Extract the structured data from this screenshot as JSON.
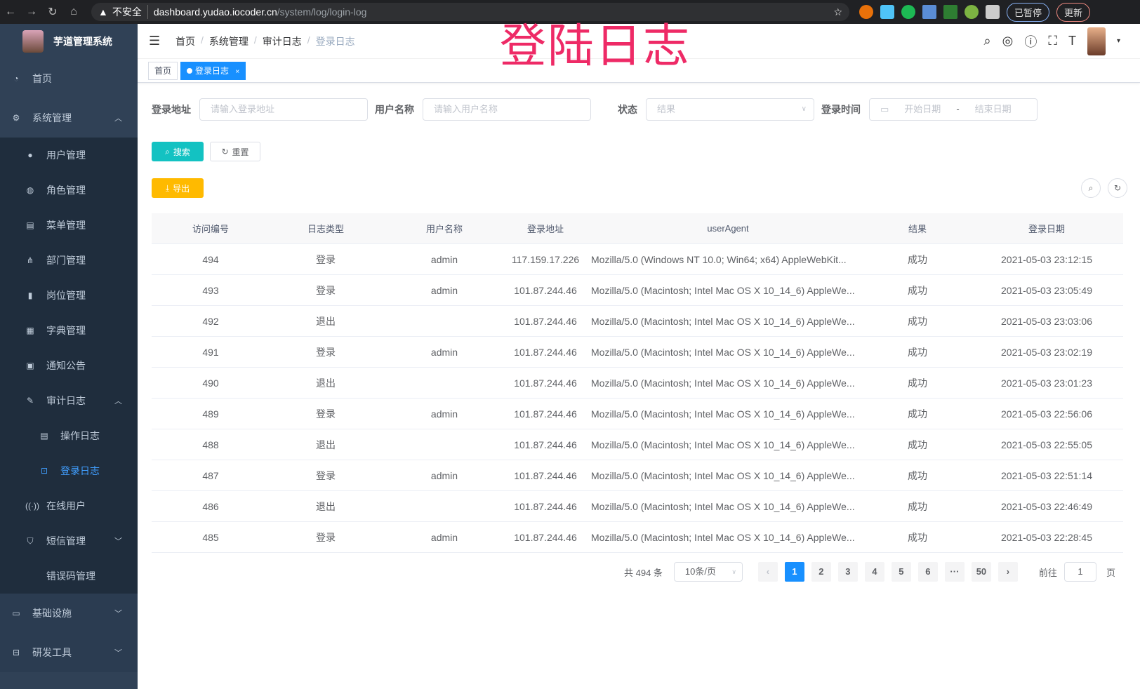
{
  "browser": {
    "url_insecure": "不安全",
    "url_host": "dashboard.yudao.iocoder.cn",
    "url_path": "/system/log/login-log",
    "paused": "已暂停",
    "update": "更新"
  },
  "watermark": "登陆日志",
  "sidebar": {
    "title": "芋道管理系统",
    "items": [
      {
        "label": "首页",
        "icon": "dashboard-icon",
        "level": 0
      },
      {
        "label": "系统管理",
        "icon": "gear-icon",
        "level": 0,
        "chevron": "up"
      },
      {
        "label": "用户管理",
        "icon": "user-icon",
        "level": 1
      },
      {
        "label": "角色管理",
        "icon": "peoples-icon",
        "level": 1
      },
      {
        "label": "菜单管理",
        "icon": "tree-table-icon",
        "level": 1
      },
      {
        "label": "部门管理",
        "icon": "tree-icon",
        "level": 1
      },
      {
        "label": "岗位管理",
        "icon": "post-icon",
        "level": 1
      },
      {
        "label": "字典管理",
        "icon": "dict-icon",
        "level": 1
      },
      {
        "label": "通知公告",
        "icon": "message-icon",
        "level": 1
      },
      {
        "label": "审计日志",
        "icon": "log-icon",
        "level": 1,
        "chevron": "up"
      },
      {
        "label": "操作日志",
        "icon": "form-icon",
        "level": 2
      },
      {
        "label": "登录日志",
        "icon": "logininfor-icon",
        "level": 2,
        "active": true
      },
      {
        "label": "在线用户",
        "icon": "online-icon",
        "level": 1
      },
      {
        "label": "短信管理",
        "icon": "validcode-icon",
        "level": 1,
        "chevron": "down"
      },
      {
        "label": "错误码管理",
        "icon": "code-icon",
        "level": 1
      },
      {
        "label": "基础设施",
        "icon": "monitor-icon",
        "level": 0,
        "chevron": "down"
      },
      {
        "label": "研发工具",
        "icon": "tool-icon",
        "level": 0,
        "chevron": "down"
      }
    ]
  },
  "breadcrumb": [
    "首页",
    "系统管理",
    "审计日志",
    "登录日志"
  ],
  "tags": [
    {
      "label": "首页"
    },
    {
      "label": "登录日志",
      "active": true
    }
  ],
  "filters": {
    "address_label": "登录地址",
    "address_placeholder": "请输入登录地址",
    "user_label": "用户名称",
    "user_placeholder": "请输入用户名称",
    "status_label": "状态",
    "status_placeholder": "结果",
    "time_label": "登录时间",
    "start_placeholder": "开始日期",
    "end_placeholder": "结束日期",
    "range_sep": "-"
  },
  "buttons": {
    "search": "搜索",
    "reset": "重置",
    "export": "导出"
  },
  "table": {
    "headers": [
      "访问编号",
      "日志类型",
      "用户名称",
      "登录地址",
      "userAgent",
      "结果",
      "登录日期"
    ],
    "rows": [
      [
        "494",
        "登录",
        "admin",
        "117.159.17.226",
        "Mozilla/5.0 (Windows NT 10.0; Win64; x64) AppleWebKit...",
        "成功",
        "2021-05-03 23:12:15"
      ],
      [
        "493",
        "登录",
        "admin",
        "101.87.244.46",
        "Mozilla/5.0 (Macintosh; Intel Mac OS X 10_14_6) AppleWe...",
        "成功",
        "2021-05-03 23:05:49"
      ],
      [
        "492",
        "退出",
        "",
        "101.87.244.46",
        "Mozilla/5.0 (Macintosh; Intel Mac OS X 10_14_6) AppleWe...",
        "成功",
        "2021-05-03 23:03:06"
      ],
      [
        "491",
        "登录",
        "admin",
        "101.87.244.46",
        "Mozilla/5.0 (Macintosh; Intel Mac OS X 10_14_6) AppleWe...",
        "成功",
        "2021-05-03 23:02:19"
      ],
      [
        "490",
        "退出",
        "",
        "101.87.244.46",
        "Mozilla/5.0 (Macintosh; Intel Mac OS X 10_14_6) AppleWe...",
        "成功",
        "2021-05-03 23:01:23"
      ],
      [
        "489",
        "登录",
        "admin",
        "101.87.244.46",
        "Mozilla/5.0 (Macintosh; Intel Mac OS X 10_14_6) AppleWe...",
        "成功",
        "2021-05-03 22:56:06"
      ],
      [
        "488",
        "退出",
        "",
        "101.87.244.46",
        "Mozilla/5.0 (Macintosh; Intel Mac OS X 10_14_6) AppleWe...",
        "成功",
        "2021-05-03 22:55:05"
      ],
      [
        "487",
        "登录",
        "admin",
        "101.87.244.46",
        "Mozilla/5.0 (Macintosh; Intel Mac OS X 10_14_6) AppleWe...",
        "成功",
        "2021-05-03 22:51:14"
      ],
      [
        "486",
        "退出",
        "",
        "101.87.244.46",
        "Mozilla/5.0 (Macintosh; Intel Mac OS X 10_14_6) AppleWe...",
        "成功",
        "2021-05-03 22:46:49"
      ],
      [
        "485",
        "登录",
        "admin",
        "101.87.244.46",
        "Mozilla/5.0 (Macintosh; Intel Mac OS X 10_14_6) AppleWe...",
        "成功",
        "2021-05-03 22:28:45"
      ]
    ]
  },
  "pagination": {
    "total": "共 494 条",
    "page_size": "10条/页",
    "pages": [
      "1",
      "2",
      "3",
      "4",
      "5",
      "6",
      "···",
      "50"
    ],
    "current": "1",
    "goto_label": "前往",
    "goto_value": "1",
    "goto_suffix": "页"
  },
  "colors": {
    "sidebar": "#304156",
    "primary": "#1890ff",
    "search": "#13c2c2",
    "export": "#ffba00",
    "watermark": "#ee2a66"
  }
}
